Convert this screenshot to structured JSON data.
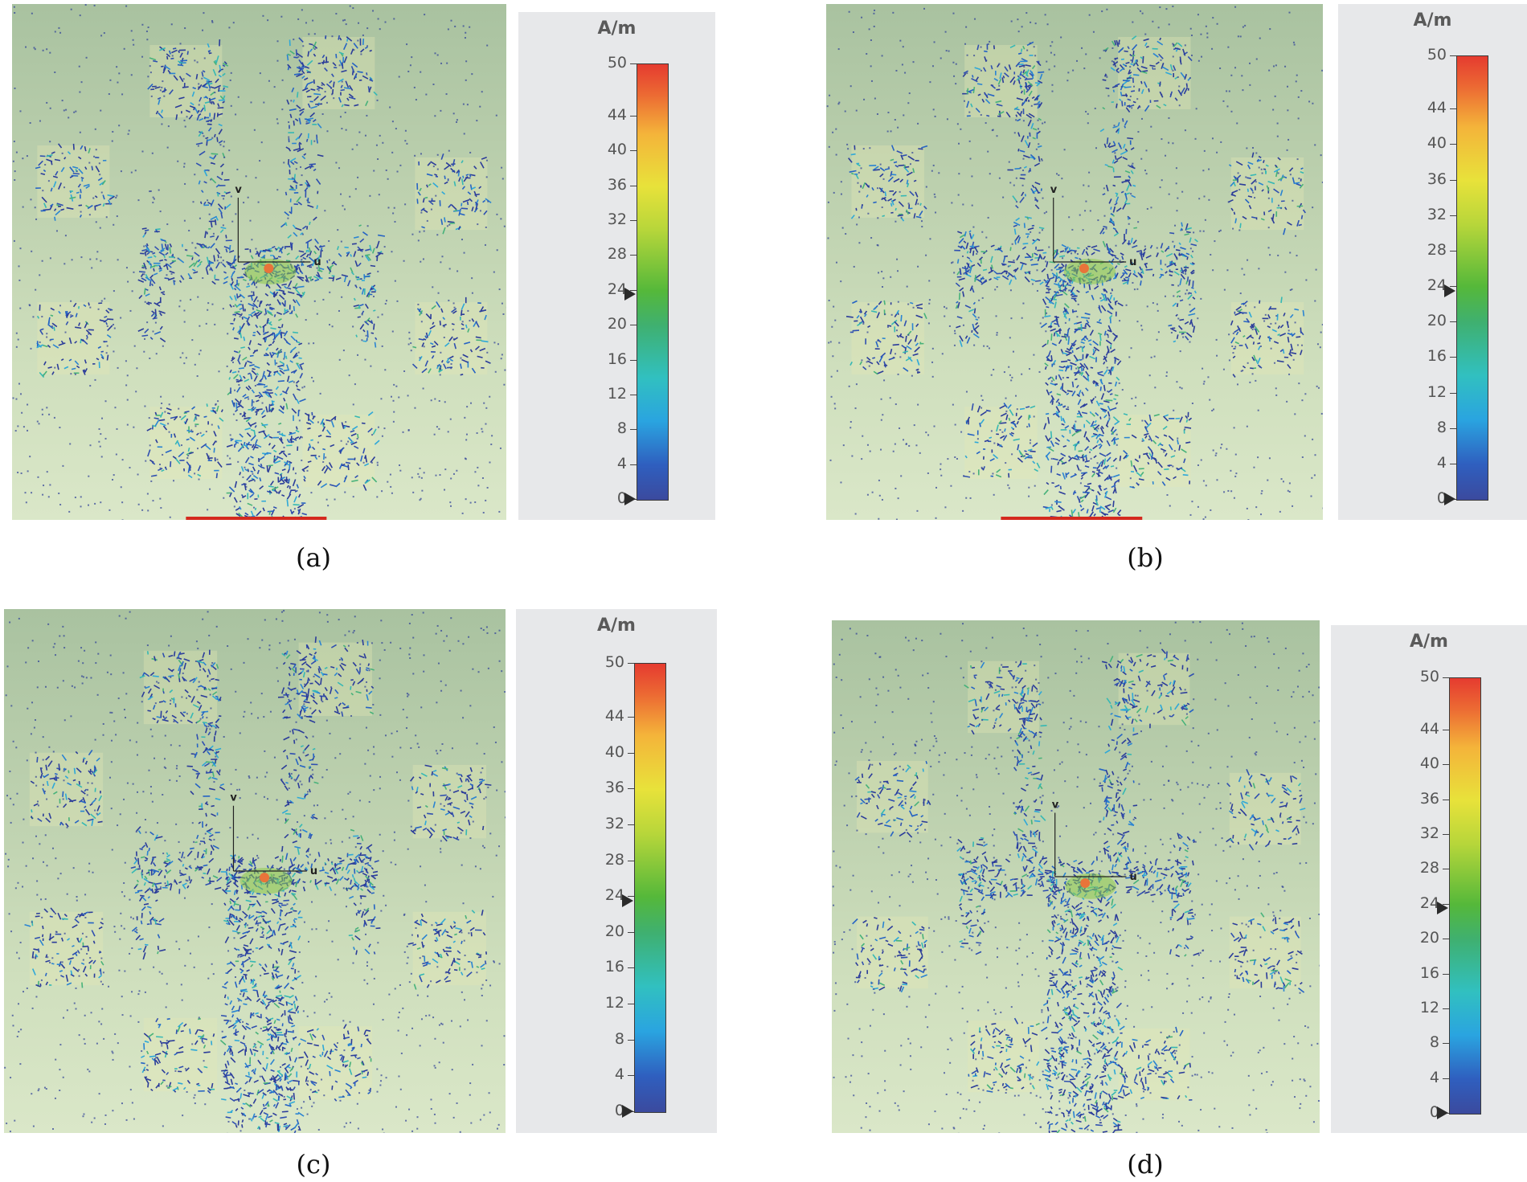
{
  "figure": {
    "panels": [
      {
        "label": "(a)",
        "unit": "A/m"
      },
      {
        "label": "(b)",
        "unit": "A/m"
      },
      {
        "label": "(c)",
        "unit": "A/m"
      },
      {
        "label": "(d)",
        "unit": "A/m"
      }
    ],
    "colorbar": {
      "min": 0,
      "max": 50,
      "ticks": [
        0,
        4,
        8,
        12,
        16,
        20,
        24,
        28,
        32,
        36,
        40,
        44,
        50
      ],
      "marker_values": [
        0,
        23.5
      ],
      "colors": [
        "#3b4a9e",
        "#2aa4e0",
        "#3fb070",
        "#e8e23a",
        "#ec6a33",
        "#e53b30"
      ]
    },
    "axis_labels": {
      "v": "v",
      "u": "u"
    }
  }
}
